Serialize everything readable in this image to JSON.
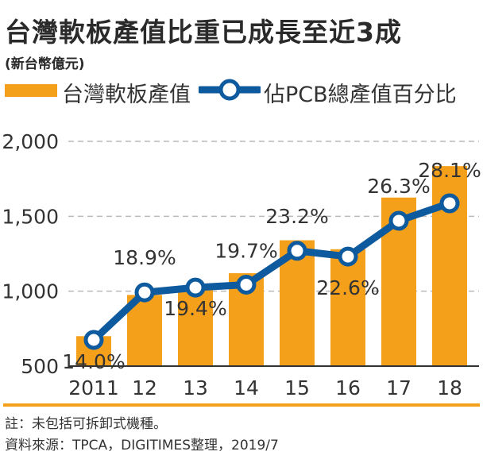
{
  "header": {
    "title": "台灣軟板產值比重已成長至近3成",
    "unit": "(新台幣億元)"
  },
  "legend": {
    "bar_label": "台灣軟板產值",
    "line_label": "佔PCB總產值百分比"
  },
  "colors": {
    "bar": "#f5a01a",
    "line": "#0e5a9e",
    "marker_fill": "#ffffff",
    "grid": "#b9b9b9"
  },
  "chart_data": {
    "type": "bar",
    "categories": [
      "2011",
      "12",
      "13",
      "14",
      "15",
      "16",
      "17",
      "18"
    ],
    "series": [
      {
        "name": "台灣軟板產值",
        "type": "bar",
        "axis": "left",
        "values": [
          700,
          975,
          1025,
          1120,
          1340,
          1280,
          1625,
          1835
        ]
      },
      {
        "name": "佔PCB總產值百分比",
        "type": "line",
        "axis": "right",
        "unit": "%",
        "values": [
          14.0,
          18.9,
          19.4,
          19.7,
          23.2,
          22.6,
          26.3,
          28.1
        ],
        "labels": [
          "14.0%",
          "18.9%",
          "19.4%",
          "19.7%",
          "23.2%",
          "22.6%",
          "26.3%",
          "28.1%"
        ]
      }
    ],
    "yticks": [
      "500",
      "1,000",
      "1,500",
      "2,000"
    ],
    "ylim": [
      500,
      2000
    ],
    "grid": true,
    "title": "台灣軟板產值比重已成長至近3成",
    "ylabel": "(新台幣億元)",
    "xlabel": ""
  },
  "footnotes": {
    "note": "註：未包括可拆卸式機種。",
    "source": "資料來源：TPCA，DIGITIMES整理，2019/7"
  }
}
